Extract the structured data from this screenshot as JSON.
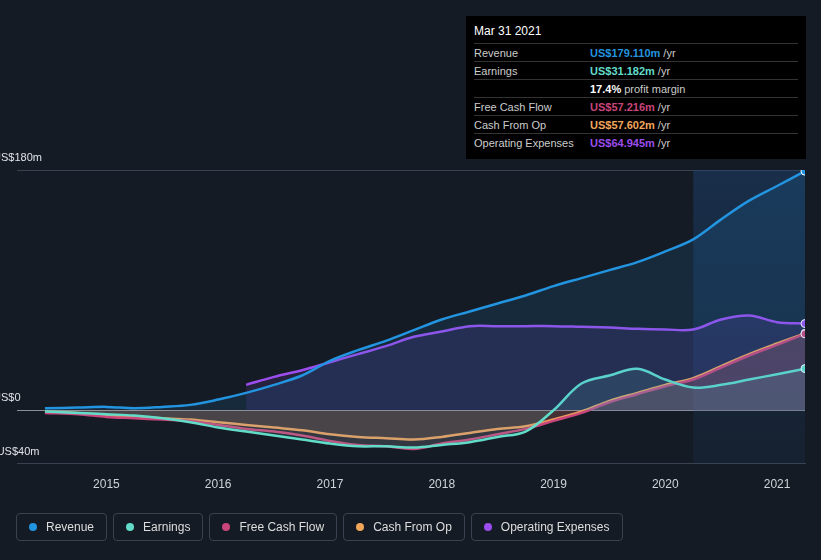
{
  "chart_data": {
    "type": "line",
    "x": [
      2014.45,
      2014.75,
      2015,
      2015.25,
      2015.5,
      2015.75,
      2016,
      2016.25,
      2016.5,
      2016.75,
      2017,
      2017.25,
      2017.5,
      2017.75,
      2018,
      2018.25,
      2018.5,
      2018.75,
      2019,
      2019.25,
      2019.5,
      2019.75,
      2020,
      2020.25,
      2020.5,
      2020.75,
      2021,
      2021.25
    ],
    "xlim": [
      2014.2,
      2021.25
    ],
    "xticks": [
      2015,
      2016,
      2017,
      2018,
      2019,
      2020,
      2021
    ],
    "ylim": [
      -40,
      180
    ],
    "yticks": [
      {
        "value": -40,
        "label": "-US$40m"
      },
      {
        "value": 0,
        "label": "US$0"
      },
      {
        "value": 180,
        "label": "US$180m"
      }
    ],
    "grid": true,
    "legend": "bottom",
    "series": [
      {
        "name": "Revenue",
        "color": "#2394df",
        "values": [
          1.5,
          2,
          2.5,
          1.5,
          2.5,
          4,
          8,
          13,
          19,
          26,
          37,
          45,
          52,
          60,
          68,
          74,
          80,
          86,
          93,
          99,
          105,
          111,
          119,
          128,
          143,
          157,
          168,
          179.11
        ]
      },
      {
        "name": "Earnings",
        "color": "#62dcc8",
        "values": [
          -1,
          -2,
          -3,
          -4,
          -6,
          -9,
          -13,
          -16,
          -19,
          -22,
          -25,
          -27,
          -27,
          -28,
          -26,
          -24,
          -20,
          -16,
          0,
          20,
          26,
          31,
          23,
          17,
          19,
          23,
          27,
          31.182
        ]
      },
      {
        "name": "Free Cash Flow",
        "color": "#c9457a",
        "values": [
          -2,
          -3,
          -5,
          -6,
          -7,
          -8,
          -11,
          -14,
          -16,
          -19,
          -23,
          -26,
          -27,
          -29,
          -25,
          -22,
          -18,
          -14,
          -8,
          -2,
          6,
          12,
          18,
          23,
          32,
          41,
          49,
          57.216
        ]
      },
      {
        "name": "Cash From Op",
        "color": "#f2a65a",
        "values": [
          -1,
          -2,
          -4,
          -5,
          -6,
          -7,
          -9,
          -11,
          -13,
          -15,
          -18,
          -20,
          -21,
          -22,
          -20,
          -17,
          -14,
          -12,
          -7,
          -1,
          7,
          13,
          19,
          24,
          33,
          42,
          50,
          57.602
        ]
      },
      {
        "name": "Operating Expenses",
        "color": "#9b4ded",
        "values": [
          null,
          null,
          null,
          null,
          null,
          null,
          null,
          19,
          25,
          30,
          36,
          42,
          48,
          55,
          59,
          63,
          63,
          63,
          63,
          62.5,
          62,
          61,
          60.5,
          60.5,
          68,
          71,
          66,
          64.945
        ]
      }
    ],
    "annotations": {
      "title": "Mar 31 2021",
      "rows": [
        {
          "label": "Revenue",
          "value": "US$179.110m",
          "unit": "/yr"
        },
        {
          "label": "Earnings",
          "value": "US$31.182m",
          "unit": "/yr"
        },
        {
          "label": "profit margin",
          "value": "17.4%"
        },
        {
          "label": "Free Cash Flow",
          "value": "US$57.216m",
          "unit": "/yr"
        },
        {
          "label": "Cash From Op",
          "value": "US$57.602m",
          "unit": "/yr"
        },
        {
          "label": "Operating Expenses",
          "value": "US$64.945m",
          "unit": "/yr"
        }
      ]
    }
  }
}
